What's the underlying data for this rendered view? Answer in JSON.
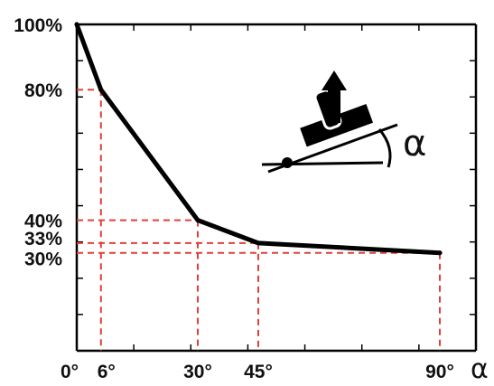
{
  "chart_data": {
    "type": "line",
    "series": [
      {
        "x": [
          0,
          6,
          30,
          45,
          90
        ],
        "y": [
          100,
          80,
          40,
          33,
          30
        ]
      }
    ],
    "xlim": [
      0,
      90
    ],
    "ylim": [
      0,
      100
    ],
    "y_ticks": [
      {
        "value": 100,
        "label": "100%"
      },
      {
        "value": 80,
        "label": "80%"
      },
      {
        "value": 40,
        "label": "40%"
      },
      {
        "value": 33,
        "label": "33%"
      },
      {
        "value": 30,
        "label": "30%"
      }
    ],
    "x_ticks": [
      {
        "value": 0,
        "label": "0°"
      },
      {
        "value": 6,
        "label": "6°"
      },
      {
        "value": 30,
        "label": "30°"
      },
      {
        "value": 45,
        "label": "45°"
      },
      {
        "value": 90,
        "label": "90°"
      }
    ],
    "xlabel": "α",
    "inset_label": "α",
    "colors": {
      "line": "#000000",
      "guides": "#e0403a",
      "axis": "#000000"
    },
    "grid": false,
    "reference_lines": "dashed red guides from each labeled point to both axes"
  }
}
